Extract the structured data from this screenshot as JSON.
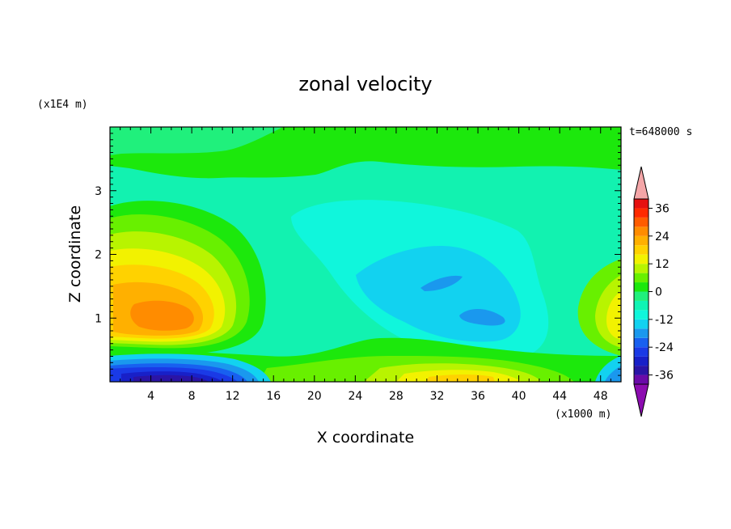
{
  "chart_data": {
    "type": "heatmap",
    "title": "zonal velocity",
    "xlabel": "X coordinate",
    "ylabel": "Z coordinate",
    "x_unit": "(x1000 m)",
    "y_unit": "(x1E4 m)",
    "time_label": "t=648000 s",
    "xlim": [
      0,
      50
    ],
    "ylim": [
      0,
      4
    ],
    "x_ticks": [
      4,
      8,
      12,
      16,
      20,
      24,
      28,
      32,
      36,
      40,
      44,
      48
    ],
    "y_ticks": [
      1,
      2,
      3
    ],
    "colorbar": {
      "levels": [
        -40,
        -36,
        -32,
        -28,
        -24,
        -20,
        -16,
        -12,
        -8,
        -4,
        0,
        4,
        8,
        12,
        16,
        20,
        24,
        28,
        32,
        36,
        40
      ],
      "tick_labels": [
        "36",
        "24",
        "12",
        "0",
        "-12",
        "-24",
        "-36"
      ],
      "tick_values": [
        36,
        24,
        12,
        0,
        -12,
        -24,
        -36
      ],
      "colors": [
        "#6a0aa8",
        "#2a14a6",
        "#1820c8",
        "#1a3ae6",
        "#1860f0",
        "#1a98ee",
        "#12d2f0",
        "#10f6dc",
        "#10f4b4",
        "#20f07c",
        "#1ce80c",
        "#68f000",
        "#b8f400",
        "#f2f200",
        "#ffd200",
        "#ffb000",
        "#ff8c00",
        "#ff5c00",
        "#ff2a00",
        "#e61010"
      ],
      "under_color": "#8c0cb0",
      "over_color": "#f4a6a8"
    },
    "features": [
      {
        "desc": "low-level westerly jet",
        "x": 6,
        "z": 1.05,
        "value": 26
      },
      {
        "desc": "surface easterly",
        "x": 7,
        "z": 0.05,
        "value": -38
      },
      {
        "desc": "easterly minimum",
        "x": 32,
        "z": 1.55,
        "value": -18
      },
      {
        "desc": "easterly minimum",
        "x": 37,
        "z": 1.05,
        "value": -17
      },
      {
        "desc": "surface westerly",
        "x": 36,
        "z": 0.1,
        "value": 14
      }
    ]
  }
}
